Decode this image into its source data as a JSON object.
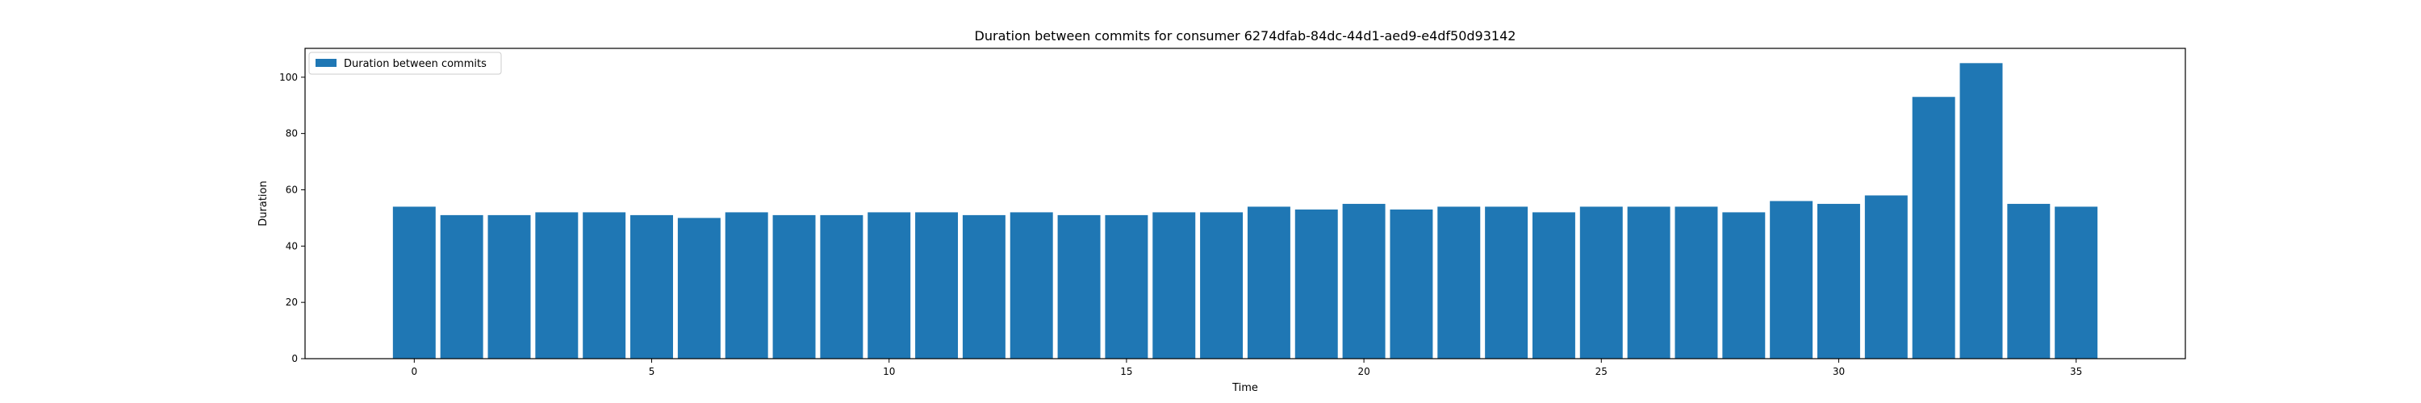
{
  "chart_data": {
    "type": "bar",
    "title": "Duration between commits for consumer 6274dfab-84dc-44d1-aed9-e4df50d93142",
    "xlabel": "Time",
    "ylabel": "Duration",
    "x": [
      0,
      1,
      2,
      3,
      4,
      5,
      6,
      7,
      8,
      9,
      10,
      11,
      12,
      13,
      14,
      15,
      16,
      17,
      18,
      19,
      20,
      21,
      22,
      23,
      24,
      25,
      26,
      27,
      28,
      29,
      30,
      31,
      32,
      33,
      34,
      35
    ],
    "values": [
      54,
      51,
      51,
      52,
      52,
      51,
      50,
      52,
      51,
      51,
      52,
      52,
      51,
      52,
      51,
      51,
      52,
      52,
      54,
      53,
      55,
      53,
      54,
      54,
      52,
      54,
      54,
      54,
      52,
      56,
      55,
      58,
      93,
      105,
      55,
      54
    ],
    "xlim": [
      -2.3,
      37.3
    ],
    "ylim": [
      0,
      110.25
    ],
    "xticks": [
      0,
      5,
      10,
      15,
      20,
      25,
      30,
      35
    ],
    "yticks": [
      0,
      20,
      40,
      60,
      80,
      100
    ],
    "bar_color": "#1f77b4",
    "legend": {
      "label": "Duration between commits",
      "position": "upper-left"
    },
    "grid": false
  }
}
